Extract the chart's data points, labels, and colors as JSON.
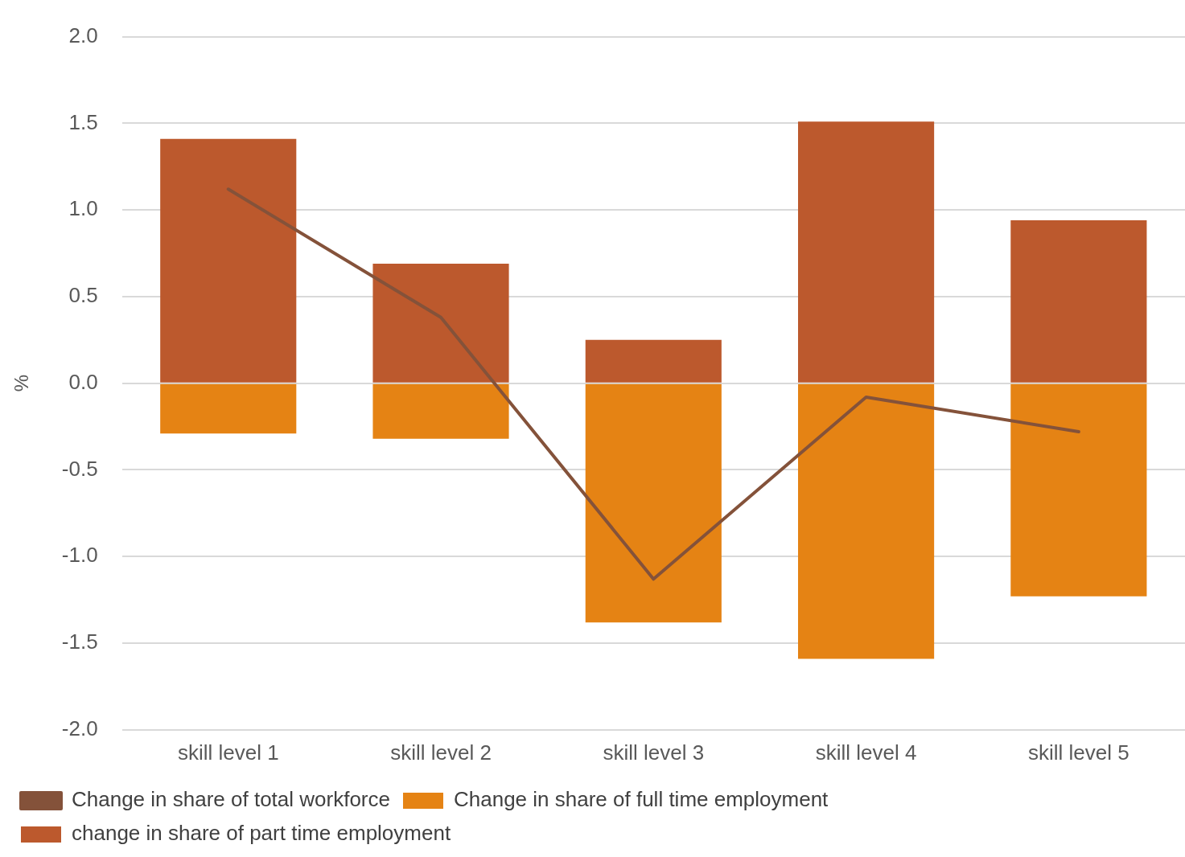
{
  "chart_data": {
    "type": "bar",
    "stacked": true,
    "ylabel": "%",
    "categories": [
      "skill level 1",
      "skill level 2",
      "skill level 3",
      "skill level 4",
      "skill level 5"
    ],
    "series": [
      {
        "name": "Change in share of full time employment",
        "color": "#e58314",
        "values": [
          -0.29,
          -0.32,
          -1.38,
          -1.59,
          -1.23
        ]
      },
      {
        "name": "change in share of part time employment",
        "color": "#bc592d",
        "values": [
          1.41,
          0.69,
          0.25,
          1.51,
          0.94
        ]
      },
      {
        "name": "Change in share of total workforce",
        "type": "line",
        "color": "#84523a",
        "marker": "none",
        "line_style": "solid",
        "values": [
          1.12,
          0.38,
          -1.13,
          -0.08,
          -0.28
        ]
      }
    ],
    "ylim": [
      -2,
      2
    ],
    "yticks": [
      {
        "value": -2,
        "label": "-2.0"
      },
      {
        "value": -1.5,
        "label": "-1.5"
      },
      {
        "value": -1,
        "label": "-1.0"
      },
      {
        "value": -0.5,
        "label": "-0.5"
      },
      {
        "value": 0,
        "label": "0.0"
      },
      {
        "value": 0.5,
        "label": "0.5"
      },
      {
        "value": 1,
        "label": "1.0"
      },
      {
        "value": 1.5,
        "label": "1.5"
      },
      {
        "value": 2,
        "label": "2.0"
      }
    ],
    "grid": "y",
    "legend": "bottom"
  }
}
